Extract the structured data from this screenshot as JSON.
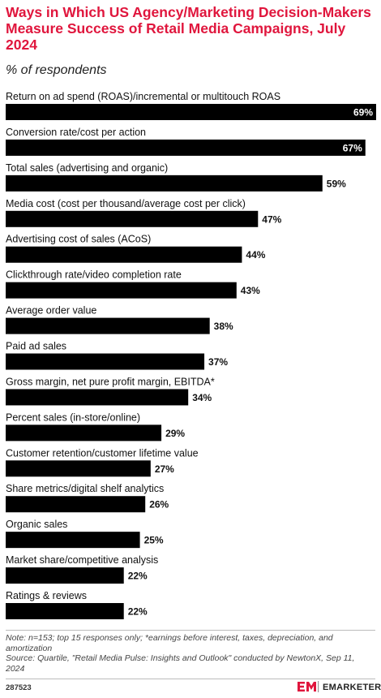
{
  "chart_data": {
    "type": "bar",
    "orientation": "horizontal",
    "title": "Ways in Which US Agency/Marketing Decision-Makers Measure Success of Retail Media Campaigns, July 2024",
    "subtitle": "% of respondents",
    "categories": [
      "Return on ad spend (ROAS)/incremental or multitouch ROAS",
      "Conversion rate/cost per action",
      "Total sales (advertising and organic)",
      "Media cost (cost per thousand/average cost per click)",
      "Advertising cost of sales (ACoS)",
      "Clickthrough rate/video completion rate",
      "Average order value",
      "Paid ad sales",
      "Gross margin, net pure profit margin, EBITDA*",
      "Percent sales (in-store/online)",
      "Customer retention/customer lifetime value",
      "Share metrics/digital shelf analytics",
      "Organic sales",
      "Market share/competitive analysis",
      "Ratings & reviews"
    ],
    "values": [
      69,
      67,
      59,
      47,
      44,
      43,
      38,
      37,
      34,
      29,
      27,
      26,
      25,
      22,
      22
    ],
    "value_labels": [
      "69%",
      "67%",
      "59%",
      "47%",
      "44%",
      "43%",
      "38%",
      "37%",
      "34%",
      "29%",
      "27%",
      "26%",
      "25%",
      "22%",
      "22%"
    ],
    "color": "#000000",
    "note": "Note: n=153; top 15 responses only; *earnings before interest, taxes, depreciation, and amortization",
    "source": "Source: Quartile, \"Retail Media Pulse: Insights and Outlook\" conducted by NewtonX, Sep 11, 2024",
    "chart_id": "287523",
    "brand": "EMARKETER"
  }
}
